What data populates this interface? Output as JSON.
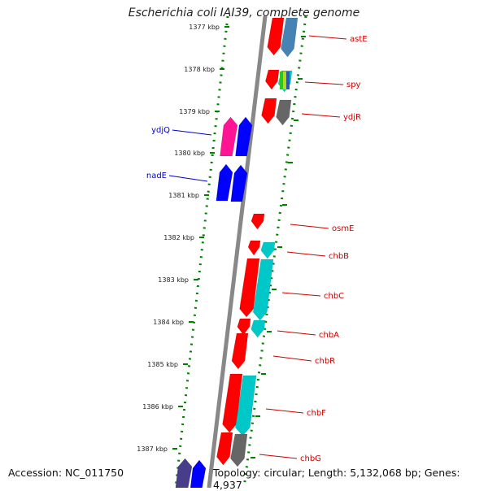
{
  "title": "Escherichia coli IAI39, complete genome",
  "accession": "Accession: NC_011750",
  "topology": "Topology: circular; Length: 5,132,068 bp; Genes: 4,937",
  "colors": {
    "forward_gene": "#ff0000",
    "reverse_gene": "#0000ff",
    "cyan_gene": "#00c8c8",
    "gray_gene": "#666666",
    "steel_gene": "#4682b4",
    "pink_gene": "#ff1493",
    "purple_gene": "#483d8b",
    "backbone": "#888888",
    "ruler": "#008000",
    "label_forward": "#cc0000",
    "label_reverse": "#0000cc"
  },
  "kbp_ticks": [
    "1377 kbp",
    "1378 kbp",
    "1379 kbp",
    "1380 kbp",
    "1381 kbp",
    "1382 kbp",
    "1383 kbp",
    "1384 kbp",
    "1385 kbp",
    "1386 kbp",
    "1387 kbp"
  ],
  "gene_labels_right": [
    "astE",
    "spy",
    "ydjR",
    "osmE",
    "chbB",
    "chbC",
    "chbA",
    "chbR",
    "chbF",
    "chbG"
  ],
  "gene_labels_left": [
    "ydjQ",
    "nadE"
  ]
}
